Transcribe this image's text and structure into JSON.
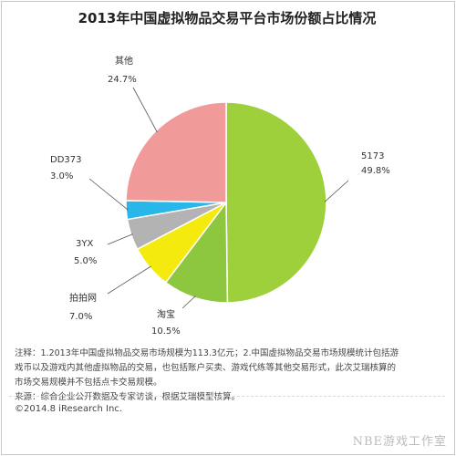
{
  "chart_data": {
    "type": "pie",
    "title": "2013年中国虚拟物品交易平台市场份额占比情况",
    "slices": [
      {
        "label": "5173",
        "value": 49.8,
        "display": "49.8%",
        "color": "#9ed03c"
      },
      {
        "label": "淘宝",
        "value": 10.5,
        "display": "10.5%",
        "color": "#8dc63f"
      },
      {
        "label": "拍拍网",
        "value": 7.0,
        "display": "7.0%",
        "color": "#f5ea0e"
      },
      {
        "label": "3YX",
        "value": 5.0,
        "display": "5.0%",
        "color": "#b3b3b3"
      },
      {
        "label": "DD373",
        "value": 3.0,
        "display": "3.0%",
        "color": "#29b6e8"
      },
      {
        "label": "其他",
        "value": 24.7,
        "display": "24.7%",
        "color": "#f19a9a"
      }
    ]
  },
  "notes": {
    "line1": "注释：1.2013年中国虚拟物品交易市场规模为113.3亿元；2.中国虚拟物品交易市场规模统计包括游",
    "line2": "戏币以及游戏内其他虚拟物品的交易，也包括账户买卖、游戏代练等其他交易形式，此次艾瑞核算的",
    "line3": "市场交易规模并不包括点卡交易规模。",
    "line4": "来源：综合企业公开数据及专家访谈，根据艾瑞模型核算。"
  },
  "copyright": "©2014.8 iResearch Inc.",
  "watermark": "NBE游戏工作室"
}
